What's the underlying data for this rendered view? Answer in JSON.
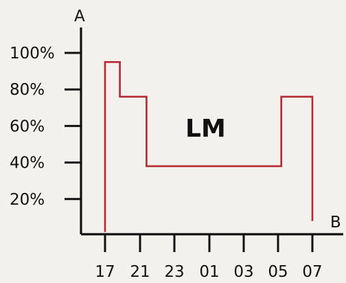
{
  "chart_data": {
    "type": "line",
    "xlabel": "B",
    "ylabel": "A",
    "annotation": "LM",
    "x_ticks": [
      "17",
      "21",
      "23",
      "01",
      "03",
      "05",
      "07"
    ],
    "y_ticks": [
      "20%",
      "40%",
      "60%",
      "80%",
      "100%"
    ],
    "ylim": [
      0,
      100
    ],
    "series": [
      {
        "color": "#b5292f",
        "points": [
          {
            "x": 17,
            "y": 2
          },
          {
            "x": 17,
            "y": 95
          },
          {
            "x": 18,
            "y": 95
          },
          {
            "x": 18,
            "y": 76
          },
          {
            "x": 19.8,
            "y": 76
          },
          {
            "x": 19.8,
            "y": 38
          },
          {
            "x": 28.9,
            "y": 38
          },
          {
            "x": 28.9,
            "y": 76
          },
          {
            "x": 31,
            "y": 76
          },
          {
            "x": 31,
            "y": 8
          }
        ]
      }
    ],
    "grid": false
  }
}
